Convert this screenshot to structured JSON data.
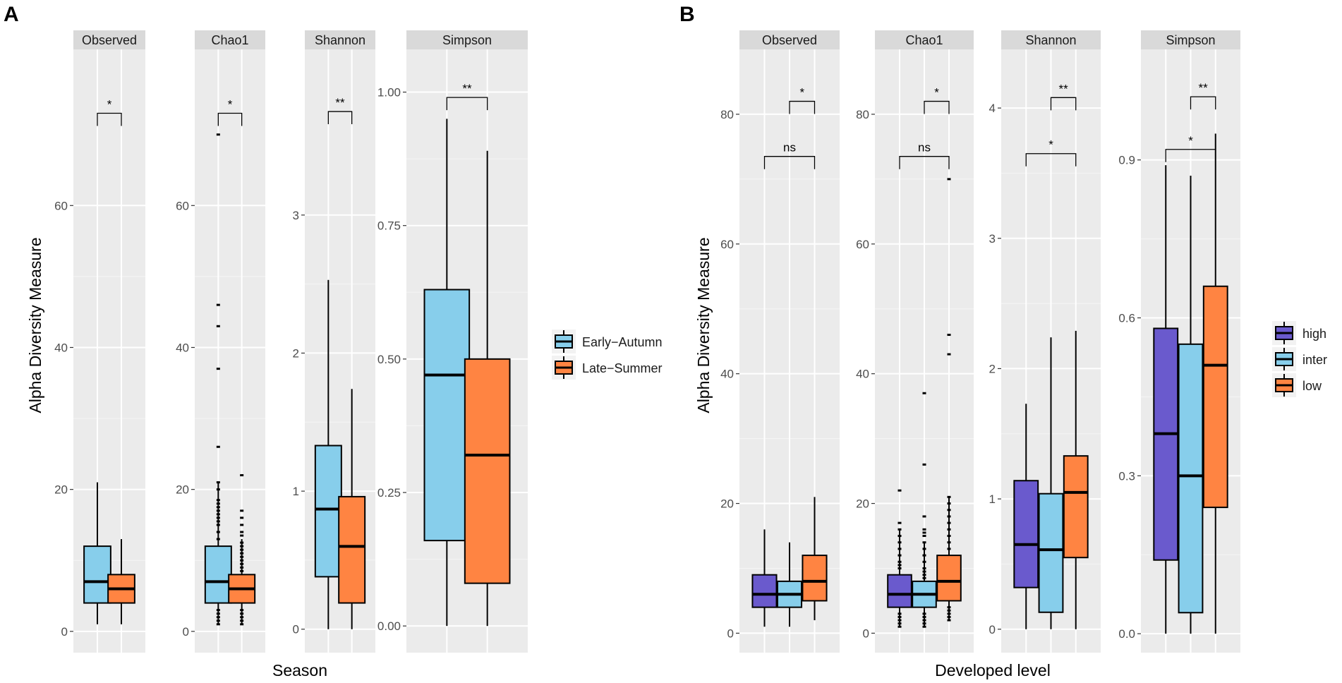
{
  "colors": {
    "early_autumn": "#87CEEB",
    "late_summer": "#FF8442",
    "high": "#6A5ACD",
    "inter": "#87CEEB",
    "low": "#FF8442",
    "panel_bg": "#EBEBEB",
    "strip_bg": "#D9D9D9",
    "grid_major": "#FFFFFF",
    "axis_text": "#4D4D4D"
  },
  "chart_data": [
    {
      "type": "boxplot",
      "panel_label": "A",
      "xlabel": "Season",
      "ylabel": "Alpha Diversity Measure",
      "legend": {
        "position": "right",
        "entries": [
          {
            "label": "Early−Autumn",
            "color": "#87CEEB"
          },
          {
            "label": "Late−Summer",
            "color": "#FF8442"
          }
        ]
      },
      "facets": [
        {
          "title": "Observed",
          "ylim": [
            -3,
            82
          ],
          "yticks": [
            0,
            20,
            40,
            60
          ],
          "yticklabels": [
            "0",
            "20",
            "40",
            "60"
          ],
          "boxes": [
            {
              "group": "Early−Autumn",
              "color": "#87CEEB",
              "whisker_low": 1,
              "q1": 4,
              "median": 7,
              "q3": 12,
              "whisker_high": 21,
              "outliers": []
            },
            {
              "group": "Late−Summer",
              "color": "#FF8442",
              "whisker_low": 1,
              "q1": 4,
              "median": 6,
              "q3": 8,
              "whisker_high": 13,
              "outliers": []
            }
          ],
          "brackets": [
            {
              "from": 0,
              "to": 1,
              "y": 73,
              "label": "*"
            }
          ]
        },
        {
          "title": "Chao1",
          "ylim": [
            -3,
            82
          ],
          "yticks": [
            0,
            20,
            40,
            60
          ],
          "yticklabels": [
            "0",
            "20",
            "40",
            "60"
          ],
          "boxes": [
            {
              "group": "Early−Autumn",
              "color": "#87CEEB",
              "whisker_low": 1,
              "q1": 4,
              "median": 7,
              "q3": 12,
              "whisker_high": 21,
              "outliers": [
                1,
                1.5,
                2,
                2.5,
                3,
                13,
                14,
                15,
                15.5,
                16,
                16.5,
                17,
                17.5,
                18,
                18.5,
                20,
                21,
                26,
                37,
                43,
                46,
                70
              ]
            },
            {
              "group": "Late−Summer",
              "color": "#FF8442",
              "whisker_low": 1,
              "q1": 4,
              "median": 6,
              "q3": 8,
              "whisker_high": 13,
              "outliers": [
                1,
                1.5,
                2,
                2.5,
                3,
                8.5,
                9,
                9.5,
                10,
                10.5,
                11,
                11.5,
                12,
                12.5,
                13.5,
                14,
                15,
                16,
                17,
                22
              ]
            }
          ],
          "brackets": [
            {
              "from": 0,
              "to": 1,
              "y": 73,
              "label": "*"
            }
          ]
        },
        {
          "title": "Shannon",
          "ylim": [
            -0.17,
            4.2
          ],
          "yticks": [
            0,
            1,
            2,
            3
          ],
          "yticklabels": [
            "0",
            "1",
            "2",
            "3"
          ],
          "boxes": [
            {
              "group": "Early−Autumn",
              "color": "#87CEEB",
              "whisker_low": 0,
              "q1": 0.38,
              "median": 0.87,
              "q3": 1.33,
              "whisker_high": 2.53,
              "outliers": []
            },
            {
              "group": "Late−Summer",
              "color": "#FF8442",
              "whisker_low": 0,
              "q1": 0.19,
              "median": 0.6,
              "q3": 0.96,
              "whisker_high": 1.74,
              "outliers": []
            }
          ],
          "brackets": [
            {
              "from": 0,
              "to": 1,
              "y": 3.75,
              "label": "**"
            }
          ]
        },
        {
          "title": "Simpson",
          "ylim": [
            -0.05,
            1.08
          ],
          "yticks": [
            0,
            0.25,
            0.5,
            0.75,
            1
          ],
          "yticklabels": [
            "0.00",
            "0.25",
            "0.50",
            "0.75",
            "1.00"
          ],
          "boxes": [
            {
              "group": "Early−Autumn",
              "color": "#87CEEB",
              "whisker_low": 0,
              "q1": 0.16,
              "median": 0.47,
              "q3": 0.63,
              "whisker_high": 0.95,
              "outliers": []
            },
            {
              "group": "Late−Summer",
              "color": "#FF8442",
              "whisker_low": 0,
              "q1": 0.08,
              "median": 0.32,
              "q3": 0.5,
              "whisker_high": 0.89,
              "outliers": []
            }
          ],
          "brackets": [
            {
              "from": 0,
              "to": 1,
              "y": 0.99,
              "label": "**"
            }
          ]
        }
      ]
    },
    {
      "type": "boxplot",
      "panel_label": "B",
      "xlabel": "Developed level",
      "ylabel": "Alpha Diversity Measure",
      "legend": {
        "position": "right",
        "entries": [
          {
            "label": "high",
            "color": "#6A5ACD"
          },
          {
            "label": "inter",
            "color": "#87CEEB"
          },
          {
            "label": "low",
            "color": "#FF8442"
          }
        ]
      },
      "facets": [
        {
          "title": "Observed",
          "ylim": [
            -3,
            90
          ],
          "yticks": [
            0,
            20,
            40,
            60,
            80
          ],
          "yticklabels": [
            "0",
            "20",
            "40",
            "60",
            "80"
          ],
          "boxes": [
            {
              "group": "high",
              "color": "#6A5ACD",
              "whisker_low": 1,
              "q1": 4,
              "median": 6,
              "q3": 9,
              "whisker_high": 16,
              "outliers": []
            },
            {
              "group": "inter",
              "color": "#87CEEB",
              "whisker_low": 1,
              "q1": 4,
              "median": 6,
              "q3": 8,
              "whisker_high": 14,
              "outliers": []
            },
            {
              "group": "low",
              "color": "#FF8442",
              "whisker_low": 2,
              "q1": 5,
              "median": 8,
              "q3": 12,
              "whisker_high": 21,
              "outliers": []
            }
          ],
          "brackets": [
            {
              "from": 1,
              "to": 2,
              "y": 82,
              "label": "*"
            },
            {
              "from": 0,
              "to": 2,
              "y": 73.5,
              "label": "ns"
            }
          ]
        },
        {
          "title": "Chao1",
          "ylim": [
            -3,
            90
          ],
          "yticks": [
            0,
            20,
            40,
            60,
            80
          ],
          "yticklabels": [
            "0",
            "20",
            "40",
            "60",
            "80"
          ],
          "boxes": [
            {
              "group": "high",
              "color": "#6A5ACD",
              "whisker_low": 1,
              "q1": 4,
              "median": 6,
              "q3": 9,
              "whisker_high": 16,
              "outliers": [
                1,
                1.5,
                2,
                2.5,
                3,
                10,
                10.5,
                11,
                12,
                13,
                14,
                15,
                16,
                17,
                22
              ]
            },
            {
              "group": "inter",
              "color": "#87CEEB",
              "whisker_low": 1,
              "q1": 4,
              "median": 6,
              "q3": 8,
              "whisker_high": 14,
              "outliers": [
                1,
                1.5,
                2,
                2.5,
                3,
                8.5,
                9,
                9.5,
                10,
                11,
                12,
                13,
                14,
                15,
                15.5,
                16,
                18,
                26,
                37
              ]
            },
            {
              "group": "low",
              "color": "#FF8442",
              "whisker_low": 2,
              "q1": 5,
              "median": 8,
              "q3": 12,
              "whisker_high": 21,
              "outliers": [
                2,
                2.5,
                3,
                3.5,
                4,
                13,
                14,
                15,
                16,
                17,
                18,
                19,
                20,
                21,
                43,
                46,
                70
              ]
            }
          ],
          "brackets": [
            {
              "from": 1,
              "to": 2,
              "y": 82,
              "label": "*"
            },
            {
              "from": 0,
              "to": 2,
              "y": 73.5,
              "label": "ns"
            }
          ]
        },
        {
          "title": "Shannon",
          "ylim": [
            -0.18,
            4.45
          ],
          "yticks": [
            0,
            1,
            2,
            3,
            4
          ],
          "yticklabels": [
            "0",
            "1",
            "2",
            "3",
            "4"
          ],
          "boxes": [
            {
              "group": "high",
              "color": "#6A5ACD",
              "whisker_low": 0,
              "q1": 0.32,
              "median": 0.65,
              "q3": 1.14,
              "whisker_high": 1.73,
              "outliers": []
            },
            {
              "group": "inter",
              "color": "#87CEEB",
              "whisker_low": 0,
              "q1": 0.13,
              "median": 0.61,
              "q3": 1.04,
              "whisker_high": 2.24,
              "outliers": []
            },
            {
              "group": "low",
              "color": "#FF8442",
              "whisker_low": 0,
              "q1": 0.55,
              "median": 1.05,
              "q3": 1.33,
              "whisker_high": 2.29,
              "outliers": []
            }
          ],
          "brackets": [
            {
              "from": 1,
              "to": 2,
              "y": 4.08,
              "label": "**"
            },
            {
              "from": 0,
              "to": 2,
              "y": 3.65,
              "label": "*"
            }
          ]
        },
        {
          "title": "Simpson",
          "ylim": [
            -0.036,
            1.11
          ],
          "yticks": [
            0,
            0.3,
            0.6,
            0.9
          ],
          "yticklabels": [
            "0.0",
            "0.3",
            "0.6",
            "0.9"
          ],
          "boxes": [
            {
              "group": "high",
              "color": "#6A5ACD",
              "whisker_low": 0,
              "q1": 0.14,
              "median": 0.38,
              "q3": 0.58,
              "whisker_high": 0.89,
              "outliers": []
            },
            {
              "group": "inter",
              "color": "#87CEEB",
              "whisker_low": 0,
              "q1": 0.04,
              "median": 0.3,
              "q3": 0.55,
              "whisker_high": 0.87,
              "outliers": []
            },
            {
              "group": "low",
              "color": "#FF8442",
              "whisker_low": 0,
              "q1": 0.24,
              "median": 0.51,
              "q3": 0.66,
              "whisker_high": 0.95,
              "outliers": []
            }
          ],
          "brackets": [
            {
              "from": 1,
              "to": 2,
              "y": 1.02,
              "label": "**"
            },
            {
              "from": 0,
              "to": 2,
              "y": 0.92,
              "label": "*"
            }
          ]
        }
      ]
    }
  ]
}
